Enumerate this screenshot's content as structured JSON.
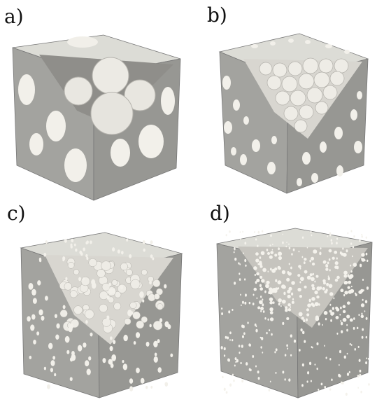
{
  "figure": {
    "panels": [
      {
        "label": "a)",
        "pore_count_scale": "few-large"
      },
      {
        "label": "b)",
        "pore_count_scale": "medium"
      },
      {
        "label": "c)",
        "pore_count_scale": "many-small"
      },
      {
        "label": "d)",
        "pore_count_scale": "very-many-tiny"
      }
    ],
    "colors": {
      "surface": "#c8c8c4",
      "face_left": "#9a9a96",
      "face_right": "#8c8c88",
      "face_top": "#dcdcd6",
      "pore_hole": "#f2f0ea",
      "sphere_light": "#f4f2ec",
      "sphere_shadow": "#b8b6b0",
      "edge": "#6f6f6b"
    }
  }
}
